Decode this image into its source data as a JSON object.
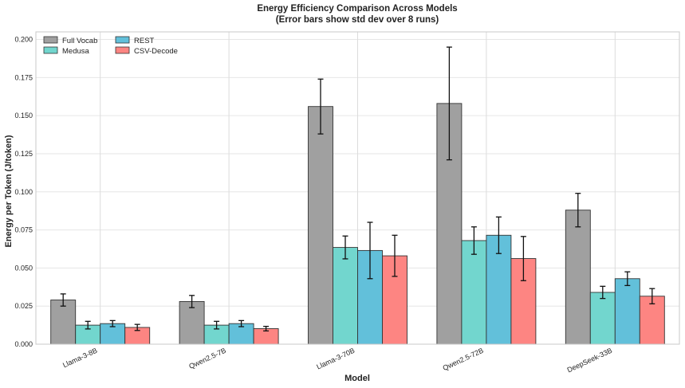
{
  "chart_data": {
    "type": "bar",
    "title": "Energy Efficiency Comparison Across Models",
    "subtitle": "(Error bars show std dev over 8 runs)",
    "xlabel": "Model",
    "ylabel": "Energy per Token (J/token)",
    "ylim": [
      0,
      0.205
    ],
    "yticks": [
      0.0,
      0.025,
      0.05,
      0.075,
      0.1,
      0.125,
      0.15,
      0.175,
      0.2
    ],
    "ytick_labels": [
      "0.000",
      "0.025",
      "0.050",
      "0.075",
      "0.100",
      "0.125",
      "0.150",
      "0.175",
      "0.200"
    ],
    "categories": [
      "Llama-3-8B",
      "Qwen2.5-7B",
      "Llama-3-70B",
      "Qwen2.5-72B",
      "DeepSeek-33B"
    ],
    "grid": true,
    "legend_position": "top-left",
    "series": [
      {
        "name": "Full Vocab",
        "color": "#a0a0a0",
        "values": [
          0.029,
          0.028,
          0.156,
          0.158,
          0.088
        ],
        "errors": [
          0.004,
          0.004,
          0.018,
          0.037,
          0.011
        ]
      },
      {
        "name": "Medusa",
        "color": "#72d6ce",
        "values": [
          0.0125,
          0.0125,
          0.0635,
          0.068,
          0.034
        ],
        "errors": [
          0.0025,
          0.0025,
          0.0075,
          0.009,
          0.004
        ]
      },
      {
        "name": "REST",
        "color": "#62c0da",
        "values": [
          0.0135,
          0.0135,
          0.0615,
          0.0715,
          0.043
        ],
        "errors": [
          0.002,
          0.002,
          0.0185,
          0.012,
          0.0045
        ]
      },
      {
        "name": "CSV-Decode",
        "color": "#fd8582",
        "values": [
          0.011,
          0.0102,
          0.058,
          0.0562,
          0.0315
        ],
        "errors": [
          0.002,
          0.0015,
          0.0135,
          0.0145,
          0.005
        ]
      }
    ]
  }
}
